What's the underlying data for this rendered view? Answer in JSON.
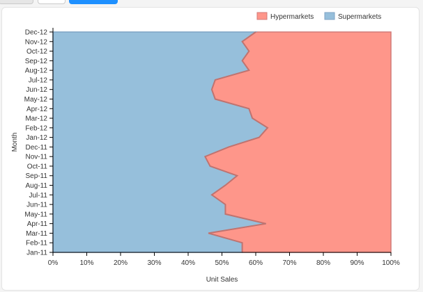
{
  "toolbar": {
    "buttons": [
      {
        "name": "toolbar-button-1"
      },
      {
        "name": "toolbar-button-2"
      },
      {
        "name": "toolbar-button-primary"
      }
    ]
  },
  "colors": {
    "hyper_fill": "#fe968a",
    "hyper_stroke": "#d27a78",
    "super_fill": "#96bfdb",
    "super_stroke": "#7fa3c4",
    "boundary": "#c0736f",
    "grid": "#dddddd"
  },
  "chart_data": {
    "type": "area",
    "stacked_percent": true,
    "orientation": "horizontal",
    "xlabel": "Unit Sales",
    "ylabel": "Month",
    "xlim": [
      0,
      100
    ],
    "x_ticks": [
      "0%",
      "10%",
      "20%",
      "30%",
      "40%",
      "50%",
      "60%",
      "70%",
      "80%",
      "90%",
      "100%"
    ],
    "grid": true,
    "legend_position": "top-right",
    "categories": [
      "Jan-11",
      "Feb-11",
      "Mar-11",
      "Apr-11",
      "May-11",
      "Jun-11",
      "Jul-11",
      "Aug-11",
      "Sep-11",
      "Oct-11",
      "Nov-11",
      "Dec-11",
      "Jan-12",
      "Feb-12",
      "Mar-12",
      "Apr-12",
      "May-12",
      "Jun-12",
      "Jul-12",
      "Aug-12",
      "Sep-12",
      "Oct-12",
      "Nov-12",
      "Dec-12"
    ],
    "series": [
      {
        "name": "Supermarkets",
        "values": [
          56,
          56,
          46,
          63,
          51,
          51,
          47,
          51,
          54.5,
          46.5,
          45,
          52,
          61,
          63.5,
          59,
          58,
          48,
          47,
          48,
          58,
          56,
          58,
          56,
          60
        ]
      },
      {
        "name": "Hypermarkets",
        "values": [
          44,
          44,
          54,
          37,
          49,
          49,
          53,
          49,
          45.5,
          53.5,
          55,
          48,
          39,
          36.5,
          41,
          42,
          52,
          53,
          52,
          42,
          44,
          42,
          44,
          40
        ]
      }
    ]
  }
}
